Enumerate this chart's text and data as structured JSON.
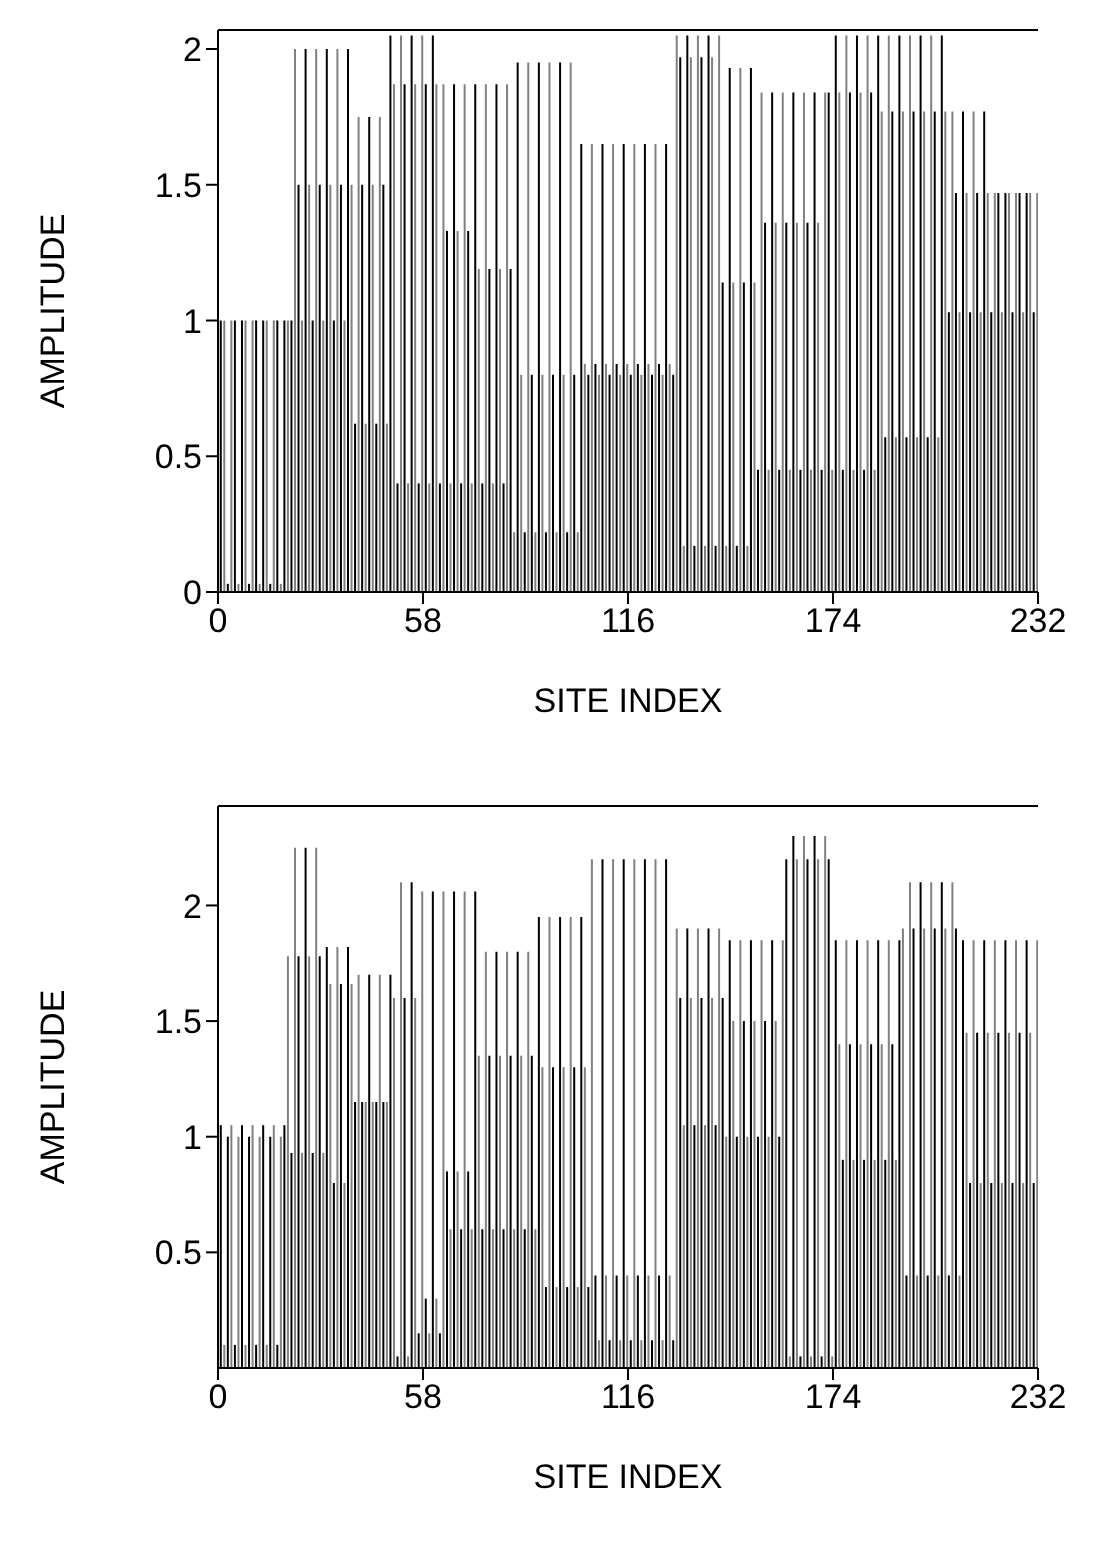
{
  "chart_data": [
    {
      "type": "bar",
      "xlabel": "SITE INDEX",
      "ylabel": "AMPLITUDE",
      "xlim": [
        0,
        232
      ],
      "xticks": [
        0,
        58,
        116,
        174,
        232
      ],
      "ylim": [
        0,
        2.07
      ],
      "yticks": [
        0,
        0.5,
        1,
        1.5,
        2
      ],
      "x": [
        1,
        2,
        3,
        4,
        5,
        6,
        7,
        8,
        9,
        10,
        11,
        12,
        13,
        14,
        15,
        16,
        17,
        18,
        19,
        20,
        21,
        22,
        23,
        24,
        25,
        26,
        27,
        28,
        29,
        30,
        31,
        32,
        33,
        34,
        35,
        36,
        37,
        38,
        39,
        40,
        41,
        42,
        43,
        44,
        45,
        46,
        47,
        48,
        49,
        50,
        51,
        52,
        53,
        54,
        55,
        56,
        57,
        58,
        59,
        60,
        61,
        62,
        63,
        64,
        65,
        66,
        67,
        68,
        69,
        70,
        71,
        72,
        73,
        74,
        75,
        76,
        77,
        78,
        79,
        80,
        81,
        82,
        83,
        84,
        85,
        86,
        87,
        88,
        89,
        90,
        91,
        92,
        93,
        94,
        95,
        96,
        97,
        98,
        99,
        100,
        101,
        102,
        103,
        104,
        105,
        106,
        107,
        108,
        109,
        110,
        111,
        112,
        113,
        114,
        115,
        116,
        117,
        118,
        119,
        120,
        121,
        122,
        123,
        124,
        125,
        126,
        127,
        128,
        129,
        130,
        131,
        132,
        133,
        134,
        135,
        136,
        137,
        138,
        139,
        140,
        141,
        142,
        143,
        144,
        145,
        146,
        147,
        148,
        149,
        150,
        151,
        152,
        153,
        154,
        155,
        156,
        157,
        158,
        159,
        160,
        161,
        162,
        163,
        164,
        165,
        166,
        167,
        168,
        169,
        170,
        171,
        172,
        173,
        174,
        175,
        176,
        177,
        178,
        179,
        180,
        181,
        182,
        183,
        184,
        185,
        186,
        187,
        188,
        189,
        190,
        191,
        192,
        193,
        194,
        195,
        196,
        197,
        198,
        199,
        200,
        201,
        202,
        203,
        204,
        205,
        206,
        207,
        208,
        209,
        210,
        211,
        212,
        213,
        214,
        215,
        216,
        217,
        218,
        219,
        220,
        221,
        222,
        223,
        224,
        225,
        226,
        227,
        228,
        229,
        230,
        231,
        232
      ],
      "values": [
        1.0,
        1.0,
        0.03,
        1.0,
        1.0,
        0.03,
        1.0,
        1.0,
        0.03,
        1.0,
        1.0,
        0.03,
        1.0,
        1.0,
        0.03,
        1.0,
        1.0,
        0.03,
        1.0,
        1.0,
        1.0,
        2.0,
        1.5,
        1.0,
        2.0,
        1.5,
        1.0,
        2.0,
        1.5,
        1.0,
        2.0,
        1.5,
        1.0,
        2.0,
        1.5,
        1.0,
        2.0,
        1.5,
        0.62,
        1.75,
        1.5,
        0.62,
        1.75,
        1.5,
        0.62,
        1.75,
        1.5,
        0.62,
        2.05,
        1.87,
        0.4,
        2.05,
        1.87,
        0.4,
        2.05,
        1.87,
        0.4,
        2.05,
        1.87,
        0.4,
        2.05,
        1.87,
        0.4,
        1.87,
        1.33,
        0.4,
        1.87,
        1.33,
        0.4,
        1.87,
        1.33,
        0.4,
        1.87,
        1.19,
        0.4,
        1.87,
        1.19,
        0.4,
        1.87,
        1.19,
        0.4,
        1.87,
        1.19,
        0.22,
        1.95,
        0.8,
        0.22,
        1.95,
        0.8,
        0.22,
        1.95,
        0.8,
        0.22,
        1.95,
        0.8,
        0.22,
        1.95,
        0.8,
        0.22,
        1.95,
        0.8,
        0.22,
        1.65,
        0.84,
        0.8,
        1.65,
        0.84,
        0.8,
        1.65,
        0.84,
        0.8,
        1.65,
        0.84,
        0.8,
        1.65,
        0.84,
        0.8,
        1.65,
        0.84,
        0.8,
        1.65,
        0.84,
        0.8,
        1.65,
        0.84,
        0.8,
        1.65,
        0.84,
        0.8,
        2.05,
        1.97,
        0.17,
        2.05,
        1.97,
        0.17,
        2.05,
        1.97,
        0.17,
        2.05,
        1.97,
        0.17,
        2.05,
        1.14,
        0.17,
        1.93,
        1.14,
        0.17,
        1.93,
        1.14,
        0.17,
        1.93,
        1.14,
        0.45,
        1.84,
        1.36,
        0.45,
        1.84,
        1.36,
        0.45,
        1.84,
        1.36,
        0.45,
        1.84,
        1.36,
        0.45,
        1.84,
        1.36,
        0.45,
        1.84,
        1.36,
        0.45,
        1.84,
        1.84,
        0.45,
        2.05,
        1.84,
        0.45,
        2.05,
        1.84,
        0.45,
        2.05,
        1.84,
        0.45,
        2.05,
        1.84,
        0.45,
        2.05,
        1.77,
        0.57,
        2.05,
        1.77,
        0.57,
        2.05,
        1.77,
        0.57,
        2.05,
        1.77,
        0.57,
        2.05,
        1.77,
        0.57,
        2.05,
        1.77,
        0.57,
        2.05,
        1.77,
        1.03,
        1.77,
        1.47,
        1.03,
        1.77,
        1.47,
        1.03,
        1.77,
        1.47,
        1.03,
        1.77,
        1.47,
        1.03,
        1.47,
        1.47,
        1.03,
        1.47,
        1.47,
        1.03,
        1.47,
        1.47,
        1.03,
        1.47,
        1.47,
        1.03,
        1.47
      ],
      "colors": [
        "#000000",
        "#808080",
        "#000000",
        "#808080",
        "#000000",
        "#808080",
        "#000000",
        "#808080",
        "#000000",
        "#808080",
        "#000000",
        "#808080",
        "#000000",
        "#808080",
        "#000000",
        "#808080",
        "#000000",
        "#808080",
        "#000000",
        "#808080",
        "#000000",
        "#808080",
        "#000000",
        "#808080",
        "#000000",
        "#808080",
        "#000000",
        "#808080",
        "#000000",
        "#808080",
        "#000000",
        "#808080",
        "#000000",
        "#808080",
        "#000000",
        "#808080",
        "#000000",
        "#808080",
        "#000000",
        "#808080",
        "#000000",
        "#808080",
        "#000000",
        "#808080",
        "#000000",
        "#808080",
        "#000000",
        "#808080",
        "#000000",
        "#808080",
        "#000000",
        "#808080",
        "#000000",
        "#808080",
        "#000000",
        "#808080",
        "#000000",
        "#808080",
        "#000000",
        "#808080",
        "#000000",
        "#808080",
        "#000000",
        "#808080",
        "#000000",
        "#808080",
        "#000000",
        "#808080",
        "#000000",
        "#808080",
        "#000000",
        "#808080",
        "#000000",
        "#808080",
        "#000000",
        "#808080",
        "#000000",
        "#808080",
        "#000000",
        "#808080",
        "#000000",
        "#808080",
        "#000000",
        "#808080",
        "#000000",
        "#808080",
        "#000000",
        "#808080",
        "#000000",
        "#808080",
        "#000000",
        "#808080",
        "#000000",
        "#808080",
        "#000000",
        "#808080",
        "#000000",
        "#808080",
        "#000000",
        "#808080",
        "#000000",
        "#808080",
        "#000000",
        "#808080",
        "#000000",
        "#808080",
        "#000000",
        "#808080",
        "#000000",
        "#808080",
        "#000000",
        "#808080",
        "#000000",
        "#808080",
        "#000000",
        "#808080",
        "#000000",
        "#808080",
        "#000000",
        "#808080",
        "#000000",
        "#808080",
        "#000000",
        "#808080",
        "#000000",
        "#808080",
        "#000000",
        "#808080",
        "#000000",
        "#808080",
        "#000000",
        "#808080",
        "#000000",
        "#808080",
        "#000000",
        "#808080",
        "#000000",
        "#808080",
        "#000000",
        "#808080",
        "#000000",
        "#808080",
        "#000000",
        "#808080",
        "#000000",
        "#808080",
        "#000000",
        "#808080",
        "#000000",
        "#808080",
        "#000000",
        "#808080",
        "#000000",
        "#808080",
        "#000000",
        "#808080",
        "#000000",
        "#808080",
        "#000000",
        "#808080",
        "#000000",
        "#808080",
        "#000000",
        "#808080",
        "#000000",
        "#808080",
        "#000000",
        "#808080",
        "#000000",
        "#808080",
        "#000000",
        "#808080",
        "#000000",
        "#808080",
        "#000000",
        "#808080",
        "#000000",
        "#808080",
        "#000000",
        "#808080",
        "#000000",
        "#808080",
        "#000000",
        "#808080",
        "#000000",
        "#808080",
        "#000000",
        "#808080",
        "#000000",
        "#808080",
        "#000000",
        "#808080",
        "#000000",
        "#808080",
        "#000000",
        "#808080",
        "#000000",
        "#808080",
        "#000000",
        "#808080",
        "#000000",
        "#808080",
        "#000000",
        "#808080",
        "#000000",
        "#808080",
        "#000000",
        "#808080",
        "#000000",
        "#808080",
        "#000000",
        "#808080",
        "#000000",
        "#808080",
        "#000000",
        "#808080",
        "#000000",
        "#808080",
        "#000000",
        "#808080",
        "#000000",
        "#808080",
        "#000000",
        "#808080",
        "#000000",
        "#808080",
        "#000000",
        "#808080",
        "#000000",
        "#808080",
        "#000000",
        "#808080"
      ]
    },
    {
      "type": "bar",
      "xlabel": "SITE INDEX",
      "ylabel": "AMPLITUDE",
      "xlim": [
        0,
        232
      ],
      "xticks": [
        0,
        58,
        116,
        174,
        232
      ],
      "ylim": [
        0,
        2.43
      ],
      "yticks": [
        0.5,
        1,
        1.5,
        2
      ],
      "x": [
        1,
        2,
        3,
        4,
        5,
        6,
        7,
        8,
        9,
        10,
        11,
        12,
        13,
        14,
        15,
        16,
        17,
        18,
        19,
        20,
        21,
        22,
        23,
        24,
        25,
        26,
        27,
        28,
        29,
        30,
        31,
        32,
        33,
        34,
        35,
        36,
        37,
        38,
        39,
        40,
        41,
        42,
        43,
        44,
        45,
        46,
        47,
        48,
        49,
        50,
        51,
        52,
        53,
        54,
        55,
        56,
        57,
        58,
        59,
        60,
        61,
        62,
        63,
        64,
        65,
        66,
        67,
        68,
        69,
        70,
        71,
        72,
        73,
        74,
        75,
        76,
        77,
        78,
        79,
        80,
        81,
        82,
        83,
        84,
        85,
        86,
        87,
        88,
        89,
        90,
        91,
        92,
        93,
        94,
        95,
        96,
        97,
        98,
        99,
        100,
        101,
        102,
        103,
        104,
        105,
        106,
        107,
        108,
        109,
        110,
        111,
        112,
        113,
        114,
        115,
        116,
        117,
        118,
        119,
        120,
        121,
        122,
        123,
        124,
        125,
        126,
        127,
        128,
        129,
        130,
        131,
        132,
        133,
        134,
        135,
        136,
        137,
        138,
        139,
        140,
        141,
        142,
        143,
        144,
        145,
        146,
        147,
        148,
        149,
        150,
        151,
        152,
        153,
        154,
        155,
        156,
        157,
        158,
        159,
        160,
        161,
        162,
        163,
        164,
        165,
        166,
        167,
        168,
        169,
        170,
        171,
        172,
        173,
        174,
        175,
        176,
        177,
        178,
        179,
        180,
        181,
        182,
        183,
        184,
        185,
        186,
        187,
        188,
        189,
        190,
        191,
        192,
        193,
        194,
        195,
        196,
        197,
        198,
        199,
        200,
        201,
        202,
        203,
        204,
        205,
        206,
        207,
        208,
        209,
        210,
        211,
        212,
        213,
        214,
        215,
        216,
        217,
        218,
        219,
        220,
        221,
        222,
        223,
        224,
        225,
        226,
        227,
        228,
        229,
        230,
        231,
        232
      ],
      "values": [
        1.05,
        0.1,
        1.0,
        1.05,
        0.1,
        1.0,
        1.05,
        0.1,
        1.0,
        1.05,
        0.1,
        1.0,
        1.05,
        0.1,
        1.0,
        1.05,
        0.1,
        1.0,
        1.05,
        1.78,
        0.93,
        2.25,
        1.78,
        0.93,
        2.25,
        1.78,
        0.93,
        2.25,
        1.78,
        0.93,
        1.82,
        1.66,
        0.8,
        1.82,
        1.66,
        0.8,
        1.82,
        1.66,
        1.15,
        1.7,
        1.15,
        1.15,
        1.7,
        1.15,
        1.15,
        1.7,
        1.15,
        1.15,
        1.7,
        1.6,
        0.05,
        2.1,
        1.6,
        0.05,
        2.1,
        1.6,
        0.15,
        2.06,
        0.3,
        0.15,
        2.06,
        0.3,
        0.15,
        2.06,
        0.85,
        0.6,
        2.06,
        0.85,
        0.6,
        2.06,
        0.85,
        0.6,
        2.06,
        1.35,
        0.6,
        1.8,
        1.35,
        0.6,
        1.8,
        1.35,
        0.6,
        1.8,
        1.35,
        0.6,
        1.8,
        1.35,
        0.6,
        1.8,
        1.35,
        0.6,
        1.95,
        1.3,
        0.35,
        1.95,
        1.3,
        0.35,
        1.95,
        1.3,
        0.35,
        1.95,
        1.3,
        0.35,
        1.95,
        1.3,
        0.35,
        2.2,
        0.4,
        0.12,
        2.2,
        0.4,
        0.12,
        2.2,
        0.4,
        0.12,
        2.2,
        0.4,
        0.12,
        2.2,
        0.4,
        0.12,
        2.2,
        0.4,
        0.12,
        2.2,
        0.4,
        0.12,
        2.2,
        0.4,
        0.12,
        1.9,
        1.6,
        1.05,
        1.9,
        1.6,
        1.05,
        1.9,
        1.6,
        1.05,
        1.9,
        1.6,
        1.05,
        1.9,
        1.6,
        1.0,
        1.85,
        1.5,
        1.0,
        1.85,
        1.5,
        1.0,
        1.85,
        1.5,
        1.0,
        1.85,
        1.5,
        1.0,
        1.85,
        1.5,
        1.0,
        1.85,
        2.2,
        0.05,
        2.3,
        2.2,
        0.05,
        2.3,
        2.2,
        0.05,
        2.3,
        2.2,
        0.05,
        2.3,
        2.2,
        0.05,
        1.85,
        1.4,
        0.9,
        1.85,
        1.4,
        0.9,
        1.85,
        1.4,
        0.9,
        1.85,
        1.4,
        0.9,
        1.85,
        1.4,
        0.9,
        1.85,
        1.4,
        0.9,
        1.85,
        1.9,
        0.4,
        2.1,
        1.9,
        0.4,
        2.1,
        1.9,
        0.4,
        2.1,
        1.9,
        0.4,
        2.1,
        1.9,
        0.4,
        2.1,
        1.9,
        0.4,
        1.85,
        1.45,
        0.8,
        1.85,
        1.45,
        0.8,
        1.85,
        1.45,
        0.8,
        1.85,
        1.45,
        0.8,
        1.85,
        1.45,
        0.8,
        1.85,
        1.45,
        0.8,
        1.85,
        1.45,
        0.8,
        1.85
      ],
      "colors": [
        "#000000",
        "#808080",
        "#000000",
        "#808080",
        "#000000",
        "#808080",
        "#000000",
        "#808080",
        "#000000",
        "#808080",
        "#000000",
        "#808080",
        "#000000",
        "#808080",
        "#000000",
        "#808080",
        "#000000",
        "#808080",
        "#000000",
        "#808080",
        "#000000",
        "#808080",
        "#000000",
        "#808080",
        "#000000",
        "#808080",
        "#000000",
        "#808080",
        "#000000",
        "#808080",
        "#000000",
        "#808080",
        "#000000",
        "#808080",
        "#000000",
        "#808080",
        "#000000",
        "#808080",
        "#000000",
        "#808080",
        "#000000",
        "#808080",
        "#000000",
        "#808080",
        "#000000",
        "#808080",
        "#000000",
        "#808080",
        "#000000",
        "#808080",
        "#000000",
        "#808080",
        "#000000",
        "#808080",
        "#000000",
        "#808080",
        "#000000",
        "#808080",
        "#000000",
        "#808080",
        "#000000",
        "#808080",
        "#000000",
        "#808080",
        "#000000",
        "#808080",
        "#000000",
        "#808080",
        "#000000",
        "#808080",
        "#000000",
        "#808080",
        "#000000",
        "#808080",
        "#000000",
        "#808080",
        "#000000",
        "#808080",
        "#000000",
        "#808080",
        "#000000",
        "#808080",
        "#000000",
        "#808080",
        "#000000",
        "#808080",
        "#000000",
        "#808080",
        "#000000",
        "#808080",
        "#000000",
        "#808080",
        "#000000",
        "#808080",
        "#000000",
        "#808080",
        "#000000",
        "#808080",
        "#000000",
        "#808080",
        "#000000",
        "#808080",
        "#000000",
        "#808080",
        "#000000",
        "#808080",
        "#000000",
        "#808080",
        "#000000",
        "#808080",
        "#000000",
        "#808080",
        "#000000",
        "#808080",
        "#000000",
        "#808080",
        "#000000",
        "#808080",
        "#000000",
        "#808080",
        "#000000",
        "#808080",
        "#000000",
        "#808080",
        "#000000",
        "#808080",
        "#000000",
        "#808080",
        "#000000",
        "#808080",
        "#000000",
        "#808080",
        "#000000",
        "#808080",
        "#000000",
        "#808080",
        "#000000",
        "#808080",
        "#000000",
        "#808080",
        "#000000",
        "#808080",
        "#000000",
        "#808080",
        "#000000",
        "#808080",
        "#000000",
        "#808080",
        "#000000",
        "#808080",
        "#000000",
        "#808080",
        "#000000",
        "#808080",
        "#000000",
        "#808080",
        "#000000",
        "#808080",
        "#000000",
        "#808080",
        "#000000",
        "#808080",
        "#000000",
        "#808080",
        "#000000",
        "#808080",
        "#000000",
        "#808080",
        "#000000",
        "#808080",
        "#000000",
        "#808080",
        "#000000",
        "#808080",
        "#000000",
        "#808080",
        "#000000",
        "#808080",
        "#000000",
        "#808080",
        "#000000",
        "#808080",
        "#000000",
        "#808080",
        "#000000",
        "#808080",
        "#000000",
        "#808080",
        "#000000",
        "#808080",
        "#000000",
        "#808080",
        "#000000",
        "#808080",
        "#000000",
        "#808080",
        "#000000",
        "#808080",
        "#000000",
        "#808080",
        "#000000",
        "#808080",
        "#000000",
        "#808080",
        "#000000",
        "#808080",
        "#000000",
        "#808080",
        "#000000",
        "#808080",
        "#000000",
        "#808080",
        "#000000",
        "#808080",
        "#000000",
        "#808080",
        "#000000",
        "#808080",
        "#000000",
        "#808080",
        "#000000",
        "#808080",
        "#000000",
        "#808080",
        "#000000",
        "#808080",
        "#000000",
        "#808080",
        "#000000",
        "#808080",
        "#000000",
        "#808080"
      ]
    }
  ]
}
